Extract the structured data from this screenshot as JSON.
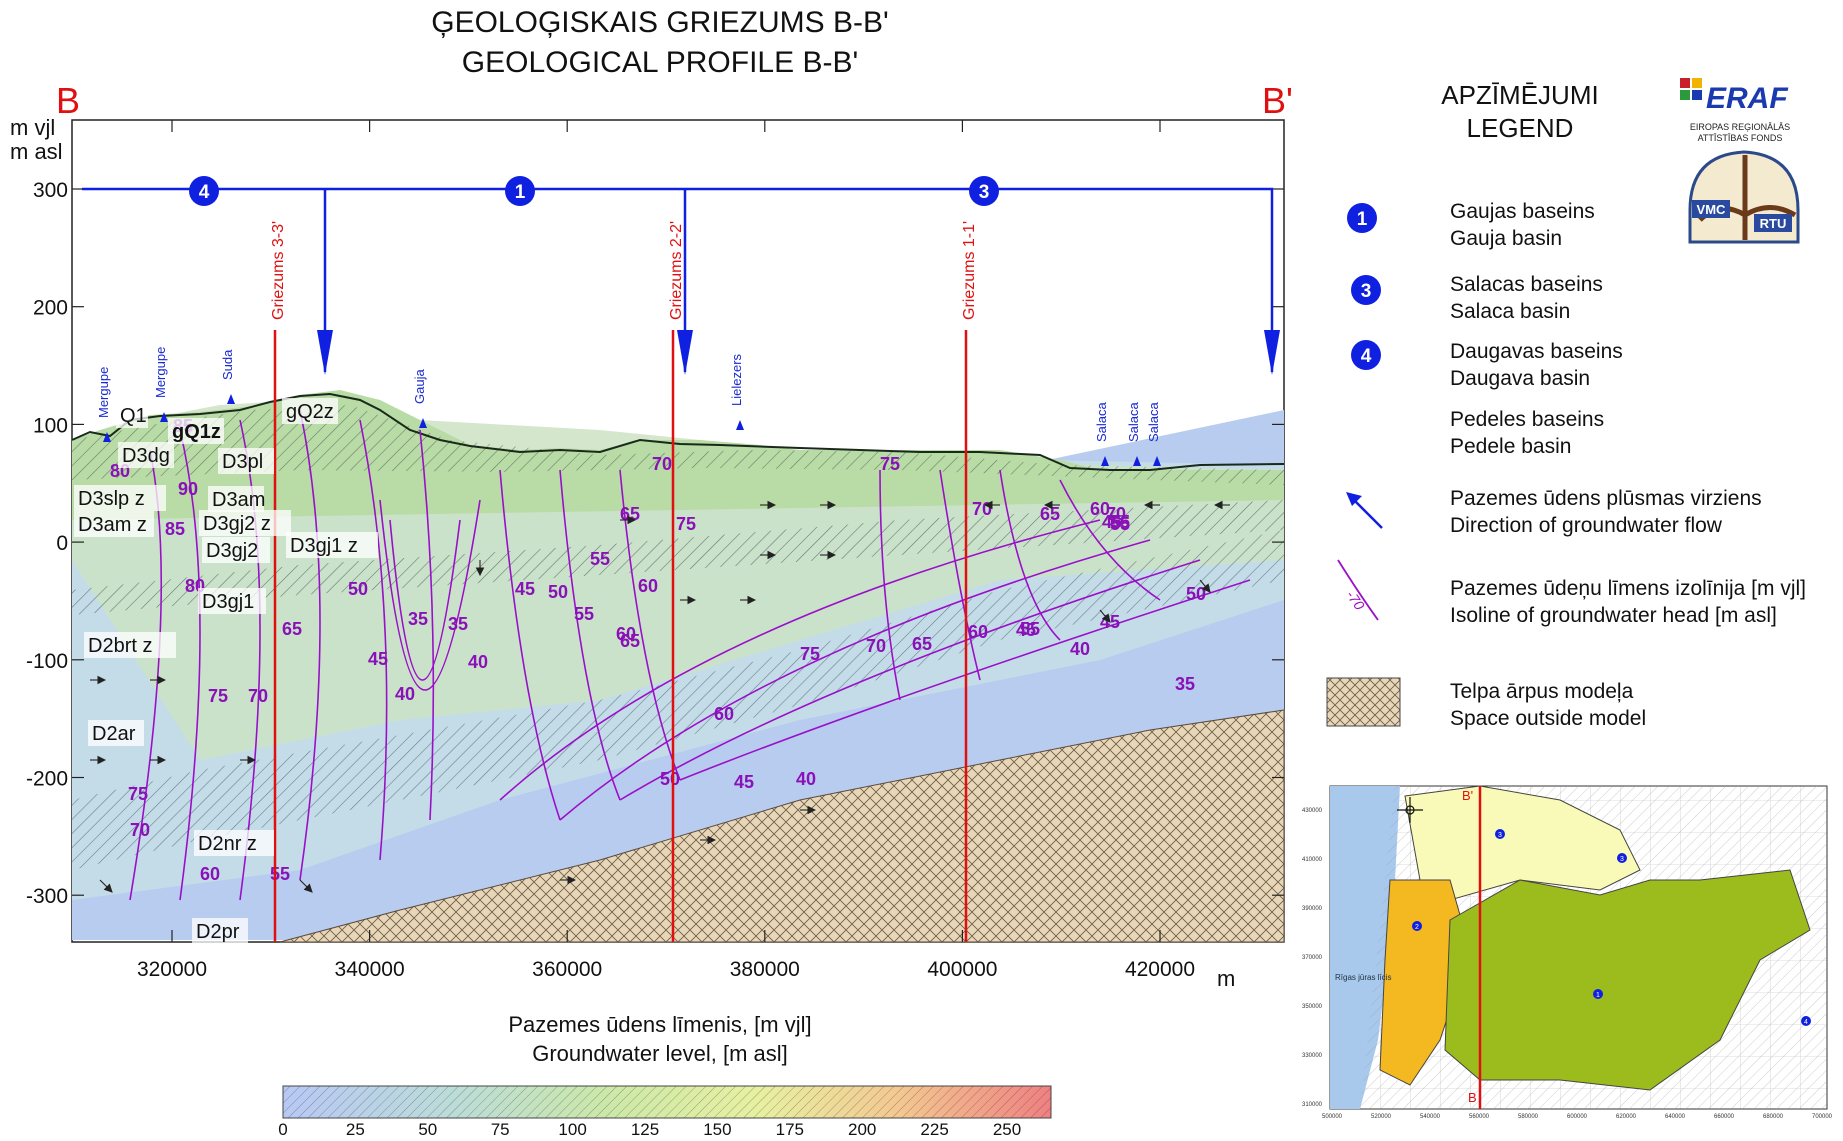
{
  "titles": {
    "line1": "ĢEOLOĢISKAIS GRIEZUMS B-B'",
    "line2": "GEOLOGICAL PROFILE B-B'"
  },
  "endpoints": {
    "left": "B",
    "right": "B'"
  },
  "y_unit": {
    "line1": "m vjl",
    "line2": "m asl"
  },
  "x_unit": "m",
  "y_ticks": [
    "300",
    "200",
    "100",
    "0",
    "-100",
    "-200",
    "-300"
  ],
  "x_ticks": [
    "320000",
    "340000",
    "360000",
    "380000",
    "400000",
    "420000"
  ],
  "section_lines": [
    "Griezums 3-3'",
    "Griezums 2-2'",
    "Griezums 1-1'"
  ],
  "basin_markers": [
    "4",
    "1",
    "3"
  ],
  "rivers": [
    "Mergupe",
    "Mergupe",
    "Suda",
    "Gauja",
    "Lielezers",
    "Salaca",
    "Salaca",
    "Salaca"
  ],
  "layers": [
    "Q1",
    "gQ1z",
    "gQ2z",
    "D3dg",
    "D3pl",
    "D3slp z",
    "D3am",
    "D3am z",
    "D3gj2 z",
    "D3gj2",
    "D3gj1 z",
    "D3gj1",
    "D2brt z",
    "D2ar",
    "D2nr z",
    "D2pr"
  ],
  "isolines": [
    "80",
    "90",
    "85",
    "80",
    "75",
    "70",
    "75",
    "70",
    "60",
    "55",
    "65",
    "50",
    "45",
    "40",
    "35",
    "35",
    "40",
    "45",
    "50",
    "55",
    "60",
    "70",
    "75",
    "60",
    "65",
    "60",
    "55",
    "50",
    "45",
    "40",
    "75",
    "70",
    "65",
    "60",
    "55",
    "50",
    "45",
    "40",
    "45",
    "35",
    "75",
    "70",
    "65",
    "60",
    "55",
    "45",
    "65",
    "85",
    "70",
    "55"
  ],
  "legend": {
    "title1": "APZĪMĒJUMI",
    "title2": "LEGEND",
    "items": [
      {
        "symbol": "1",
        "lv": "Gaujas baseins",
        "en": "Gauja basin"
      },
      {
        "symbol": "3",
        "lv": "Salacas baseins",
        "en": "Salaca basin"
      },
      {
        "symbol": "4",
        "lv": "Daugavas baseins",
        "en": "Daugava basin"
      },
      {
        "symbol": "",
        "lv": "Pedeles baseins",
        "en": "Pedele basin"
      },
      {
        "symbol": "arrow",
        "lv": "Pazemes ūdens plūsmas virziens",
        "en": "Direction of groundwater flow"
      },
      {
        "symbol": "-70",
        "lv": "Pazemes ūdeņu līmens izolīnija [m vjl]",
        "en": "Isoline of groundwater head [m asl]"
      },
      {
        "symbol": "hatch",
        "lv": "Telpa ārpus modeļa",
        "en": "Space outside model"
      }
    ]
  },
  "logos": {
    "eraf": "ERAF",
    "eraf_sub1": "EIROPAS REĢIONĀLĀS",
    "eraf_sub2": "ATTĪSTĪBAS FONDS",
    "vmc": "VMC",
    "rtu": "RTU"
  },
  "colorbar": {
    "title1": "Pazemes ūdens līmenis, [m vjl]",
    "title2": "Groundwater level, [m asl]",
    "ticks": [
      "0",
      "25",
      "50",
      "75",
      "100",
      "125",
      "150",
      "175",
      "200",
      "225",
      "250"
    ]
  },
  "inset_map": {
    "label_top": "B'",
    "label_bottom": "B",
    "sea_label": "Rīgas jūras līcis",
    "basin_ids": [
      "3",
      "3",
      "2",
      "1",
      "4"
    ],
    "y_ticks": [
      "430000",
      "410000",
      "390000",
      "370000",
      "350000",
      "330000",
      "310000"
    ],
    "x_ticks": [
      "500000",
      "520000",
      "540000",
      "560000",
      "580000",
      "600000",
      "620000",
      "640000",
      "660000",
      "680000",
      "700000"
    ]
  },
  "colors": {
    "accent_red": "#e01010",
    "basin_blue": "#1020e0",
    "isoline_purple": "#9a10c8",
    "layer_blue": "#b8ccf0",
    "layer_cyan": "#c4dce8",
    "layer_green": "#cde3c4",
    "outside_model": "#e8d6b8"
  }
}
